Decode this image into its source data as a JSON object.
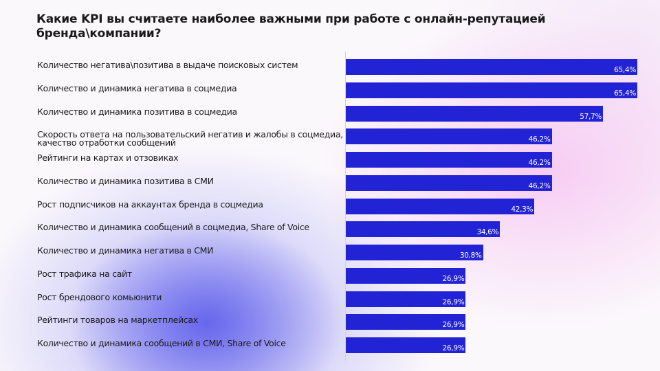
{
  "chart_data": {
    "type": "bar",
    "orientation": "horizontal",
    "title": "Какие KPI вы считаете наиболее важными при работе с онлайн-репутацией бренда\\компании?",
    "categories": [
      "Количество негатива\\позитива в выдаче поисковых систем",
      "Количество и динамика негатива в соцмедиа",
      "Количество и динамика позитива в соцмедиа",
      "Скорость ответа на пользовательский негатив и жалобы в соцмедиа, качество отработки сообщений",
      "Рейтинги на картах и отзовиках",
      "Количество и динамика позитива в СМИ",
      "Рост подписчиков на аккаунтах бренда в соцмедиа",
      "Количество и динамика сообщений в соцмедиа, Share of Voice",
      "Количество и динамика негатива в СМИ",
      "Рост трафика на сайт",
      "Рост брендового комьюнити",
      "Рейтинги товаров на маркетплейсах",
      "Количество и динамика сообщений в СМИ, Share of Voice"
    ],
    "values": [
      65.4,
      65.4,
      57.7,
      46.2,
      46.2,
      46.2,
      42.3,
      34.6,
      30.8,
      26.9,
      26.9,
      26.9,
      26.9
    ],
    "value_labels": [
      "65,4%",
      "65,4%",
      "57,7%",
      "46,2%",
      "46,2%",
      "46,2%",
      "42,3%",
      "34,6%",
      "30,8%",
      "26,9%",
      "26,9%",
      "26,9%",
      "26,9%"
    ],
    "unit": "%",
    "grid": false,
    "legend": "none",
    "bar_color": "#2323d6"
  }
}
